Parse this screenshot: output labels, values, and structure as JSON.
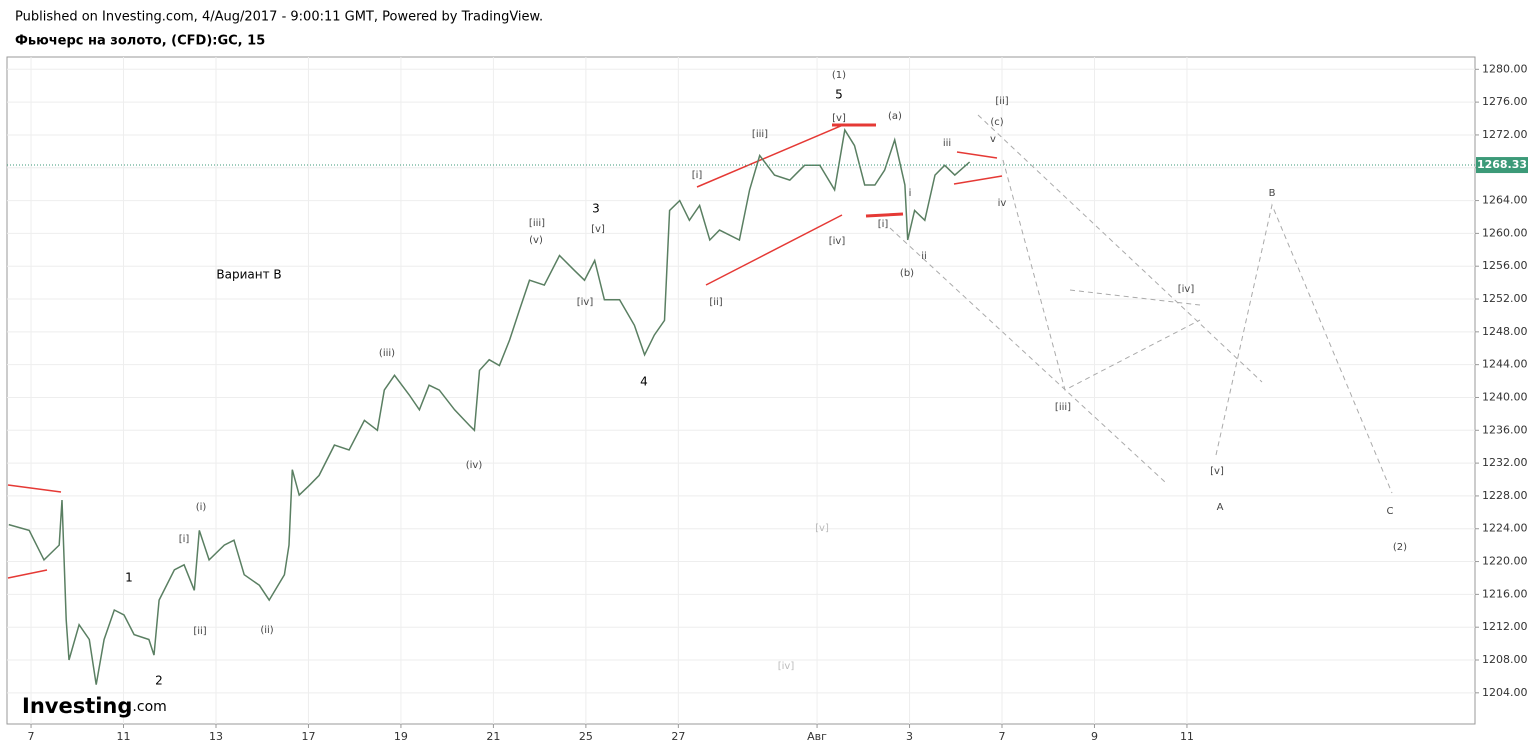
{
  "header": {
    "published": "Published on Investing.com, 4/Aug/2017 - 9:00:11 GMT, Powered by TradingView.",
    "symbol": "Фьючерс на золото, (CFD):GC, 15",
    "logo": "Investing",
    "logo_suffix": ".com"
  },
  "chart_data": {
    "type": "line",
    "color": "#5a7f62",
    "grid": true,
    "x": [
      -0.48,
      -0.04,
      0.28,
      0.61,
      0.67,
      0.76,
      0.82,
      1.04,
      1.26,
      1.41,
      1.58,
      1.8,
      2.01,
      2.23,
      2.55,
      2.66,
      2.77,
      3.1,
      3.31,
      3.53,
      3.64,
      3.85,
      4.18,
      4.39,
      4.61,
      4.94,
      5.15,
      5.48,
      5.58,
      5.65,
      5.8,
      6.02,
      6.23,
      6.56,
      6.88,
      7.21,
      7.49,
      7.64,
      7.86,
      8.18,
      8.4,
      8.61,
      8.83,
      9.16,
      9.48,
      9.59,
      9.7,
      9.91,
      10.13,
      10.35,
      10.56,
      10.78,
      11.1,
      11.43,
      11.75,
      11.97,
      12.19,
      12.4,
      12.73,
      13.05,
      13.27,
      13.48,
      13.7,
      13.81,
      14.03,
      14.24,
      14.46,
      14.68,
      14.89,
      15.32,
      15.54,
      15.76,
      16.08,
      16.41,
      16.73,
      17.06,
      17.38,
      17.6,
      17.81,
      18.03,
      18.25,
      18.46,
      18.68,
      18.9,
      18.96,
      19.11,
      19.33,
      19.55,
      19.76,
      19.98,
      20.3
    ],
    "values": [
      1224.5,
      1223.8,
      1220.2,
      1222.0,
      1227.5,
      1212.9,
      1208.0,
      1212.3,
      1210.5,
      1205.0,
      1210.5,
      1214.1,
      1213.5,
      1211.1,
      1210.5,
      1208.6,
      1215.3,
      1219.0,
      1219.6,
      1216.5,
      1223.8,
      1220.2,
      1222.0,
      1222.6,
      1218.4,
      1217.1,
      1215.3,
      1218.4,
      1222.0,
      1231.2,
      1228.1,
      1229.3,
      1230.5,
      1234.2,
      1233.6,
      1237.2,
      1236.0,
      1240.9,
      1242.7,
      1240.3,
      1238.5,
      1241.5,
      1240.9,
      1238.5,
      1236.6,
      1236.0,
      1243.3,
      1244.6,
      1243.9,
      1247.0,
      1250.6,
      1254.3,
      1253.7,
      1257.3,
      1255.5,
      1254.3,
      1256.7,
      1251.9,
      1251.9,
      1248.8,
      1245.2,
      1247.6,
      1249.4,
      1262.8,
      1264.0,
      1261.6,
      1263.4,
      1259.2,
      1260.4,
      1259.2,
      1265.3,
      1269.5,
      1267.1,
      1266.5,
      1268.3,
      1268.3,
      1265.3,
      1272.6,
      1270.7,
      1265.9,
      1265.9,
      1267.7,
      1271.4,
      1265.9,
      1259.2,
      1262.8,
      1261.6,
      1267.1,
      1268.3,
      1267.1,
      1268.7
    ],
    "last_price": 1268.33,
    "xlim": [
      -0.52,
      31.23
    ],
    "xticks": [
      {
        "value": 0,
        "label": "7"
      },
      {
        "value": 2,
        "label": "11"
      },
      {
        "value": 4,
        "label": "13"
      },
      {
        "value": 6,
        "label": "17"
      },
      {
        "value": 8,
        "label": "19"
      },
      {
        "value": 10,
        "label": "21"
      },
      {
        "value": 12,
        "label": "25"
      },
      {
        "value": 14,
        "label": "27"
      },
      {
        "value": 17,
        "label": "Авг"
      },
      {
        "value": 19,
        "label": "3"
      },
      {
        "value": 21,
        "label": "7"
      },
      {
        "value": 23,
        "label": "9"
      },
      {
        "value": 25,
        "label": "11"
      }
    ],
    "ylim": [
      1200.2,
      1281.5
    ],
    "yticks": [
      {
        "value": 1204,
        "label": "1204.00"
      },
      {
        "value": 1208,
        "label": "1208.00"
      },
      {
        "value": 1212,
        "label": "1212.00"
      },
      {
        "value": 1216,
        "label": "1216.00"
      },
      {
        "value": 1220,
        "label": "1220.00"
      },
      {
        "value": 1224,
        "label": "1224.00"
      },
      {
        "value": 1228,
        "label": "1228.00"
      },
      {
        "value": 1232,
        "label": "1232.00"
      },
      {
        "value": 1236,
        "label": "1236.00"
      },
      {
        "value": 1240,
        "label": "1240.00"
      },
      {
        "value": 1244,
        "label": "1244.00"
      },
      {
        "value": 1248,
        "label": "1248.00"
      },
      {
        "value": 1252,
        "label": "1252.00"
      },
      {
        "value": 1256,
        "label": "1256.00"
      },
      {
        "value": 1260,
        "label": "1260.00"
      },
      {
        "value": 1264,
        "label": "1264.00"
      },
      {
        "value": 1268,
        "label": "1268.00"
      },
      {
        "value": 1272,
        "label": "1272.00"
      },
      {
        "value": 1276,
        "label": "1276.00"
      },
      {
        "value": 1280,
        "label": "1280.00"
      }
    ],
    "annotations": [
      "(1)",
      "5",
      "[v]",
      "(a)",
      "[ii]",
      "(c)",
      "v",
      "iii",
      "i",
      "iv",
      "[i]",
      "[iv]",
      "ii",
      "(b)",
      "[iii]",
      "[i]",
      "[ii]",
      "3",
      "[v]",
      "[iii]",
      "(v)",
      "[iv]",
      "4",
      "Вариант B",
      "(iii)",
      "(iv)",
      "(i)",
      "[i]",
      "[ii]",
      "(ii)",
      "1",
      "2",
      "B",
      "[iv]",
      "[iii]",
      "[v]",
      "A",
      "C",
      "(2)",
      "[v]",
      "[iv]"
    ]
  }
}
